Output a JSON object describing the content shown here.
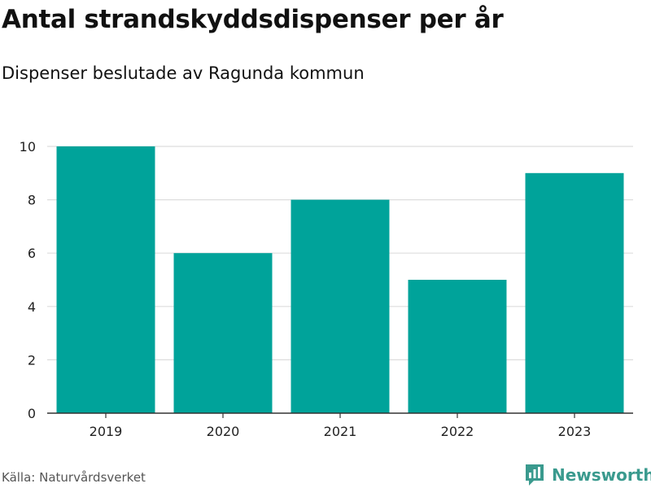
{
  "title": "Antal strandskyddsdispenser per år",
  "subtitle": "Dispenser beslutade av Ragunda kommun",
  "source": "Källa: Naturvårdsverket",
  "brand": {
    "name": "Newsworthy",
    "icon": "newsworthy-logo-icon",
    "color": "#3a9a8e"
  },
  "colors": {
    "bar": "#00a39a",
    "grid": "#dddddd",
    "axis": "#333333"
  },
  "chart_data": {
    "type": "bar",
    "title": "Antal strandskyddsdispenser per år",
    "subtitle": "Dispenser beslutade av Ragunda kommun",
    "xlabel": "",
    "ylabel": "",
    "categories": [
      "2019",
      "2020",
      "2021",
      "2022",
      "2023"
    ],
    "values": [
      10,
      6,
      8,
      5,
      9
    ],
    "ylim": [
      0,
      10
    ],
    "yticks": [
      0,
      2,
      4,
      6,
      8,
      10
    ],
    "grid": true,
    "legend": "none"
  }
}
